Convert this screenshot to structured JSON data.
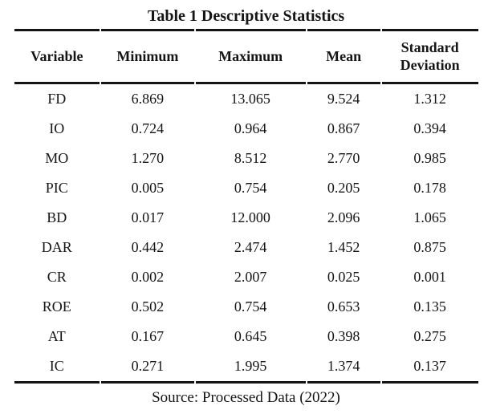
{
  "title": "Table 1 Descriptive Statistics",
  "table": {
    "columns": [
      "Variable",
      "Minimum",
      "Maximum",
      "Mean",
      "Standard Deviation"
    ],
    "rows": [
      {
        "variable": "FD",
        "minimum": "6.869",
        "maximum": "13.065",
        "mean": "9.524",
        "std_dev": "1.312"
      },
      {
        "variable": "IO",
        "minimum": "0.724",
        "maximum": "0.964",
        "mean": "0.867",
        "std_dev": "0.394"
      },
      {
        "variable": "MO",
        "minimum": "1.270",
        "maximum": "8.512",
        "mean": "2.770",
        "std_dev": "0.985"
      },
      {
        "variable": "PIC",
        "minimum": "0.005",
        "maximum": "0.754",
        "mean": "0.205",
        "std_dev": "0.178"
      },
      {
        "variable": "BD",
        "minimum": "0.017",
        "maximum": "12.000",
        "mean": "2.096",
        "std_dev": "1.065"
      },
      {
        "variable": "DAR",
        "minimum": "0.442",
        "maximum": "2.474",
        "mean": "1.452",
        "std_dev": "0.875"
      },
      {
        "variable": "CR",
        "minimum": "0.002",
        "maximum": "2.007",
        "mean": "0.025",
        "std_dev": "0.001"
      },
      {
        "variable": "ROE",
        "minimum": "0.502",
        "maximum": "0.754",
        "mean": "0.653",
        "std_dev": "0.135"
      },
      {
        "variable": "AT",
        "minimum": "0.167",
        "maximum": "0.645",
        "mean": "0.398",
        "std_dev": "0.275"
      },
      {
        "variable": "IC",
        "minimum": "0.271",
        "maximum": "1.995",
        "mean": "1.374",
        "std_dev": "0.137"
      }
    ]
  },
  "source": "Source: Processed Data (2022)",
  "colors": {
    "text": "#151515",
    "rule": "#141414",
    "background": "#ffffff"
  }
}
